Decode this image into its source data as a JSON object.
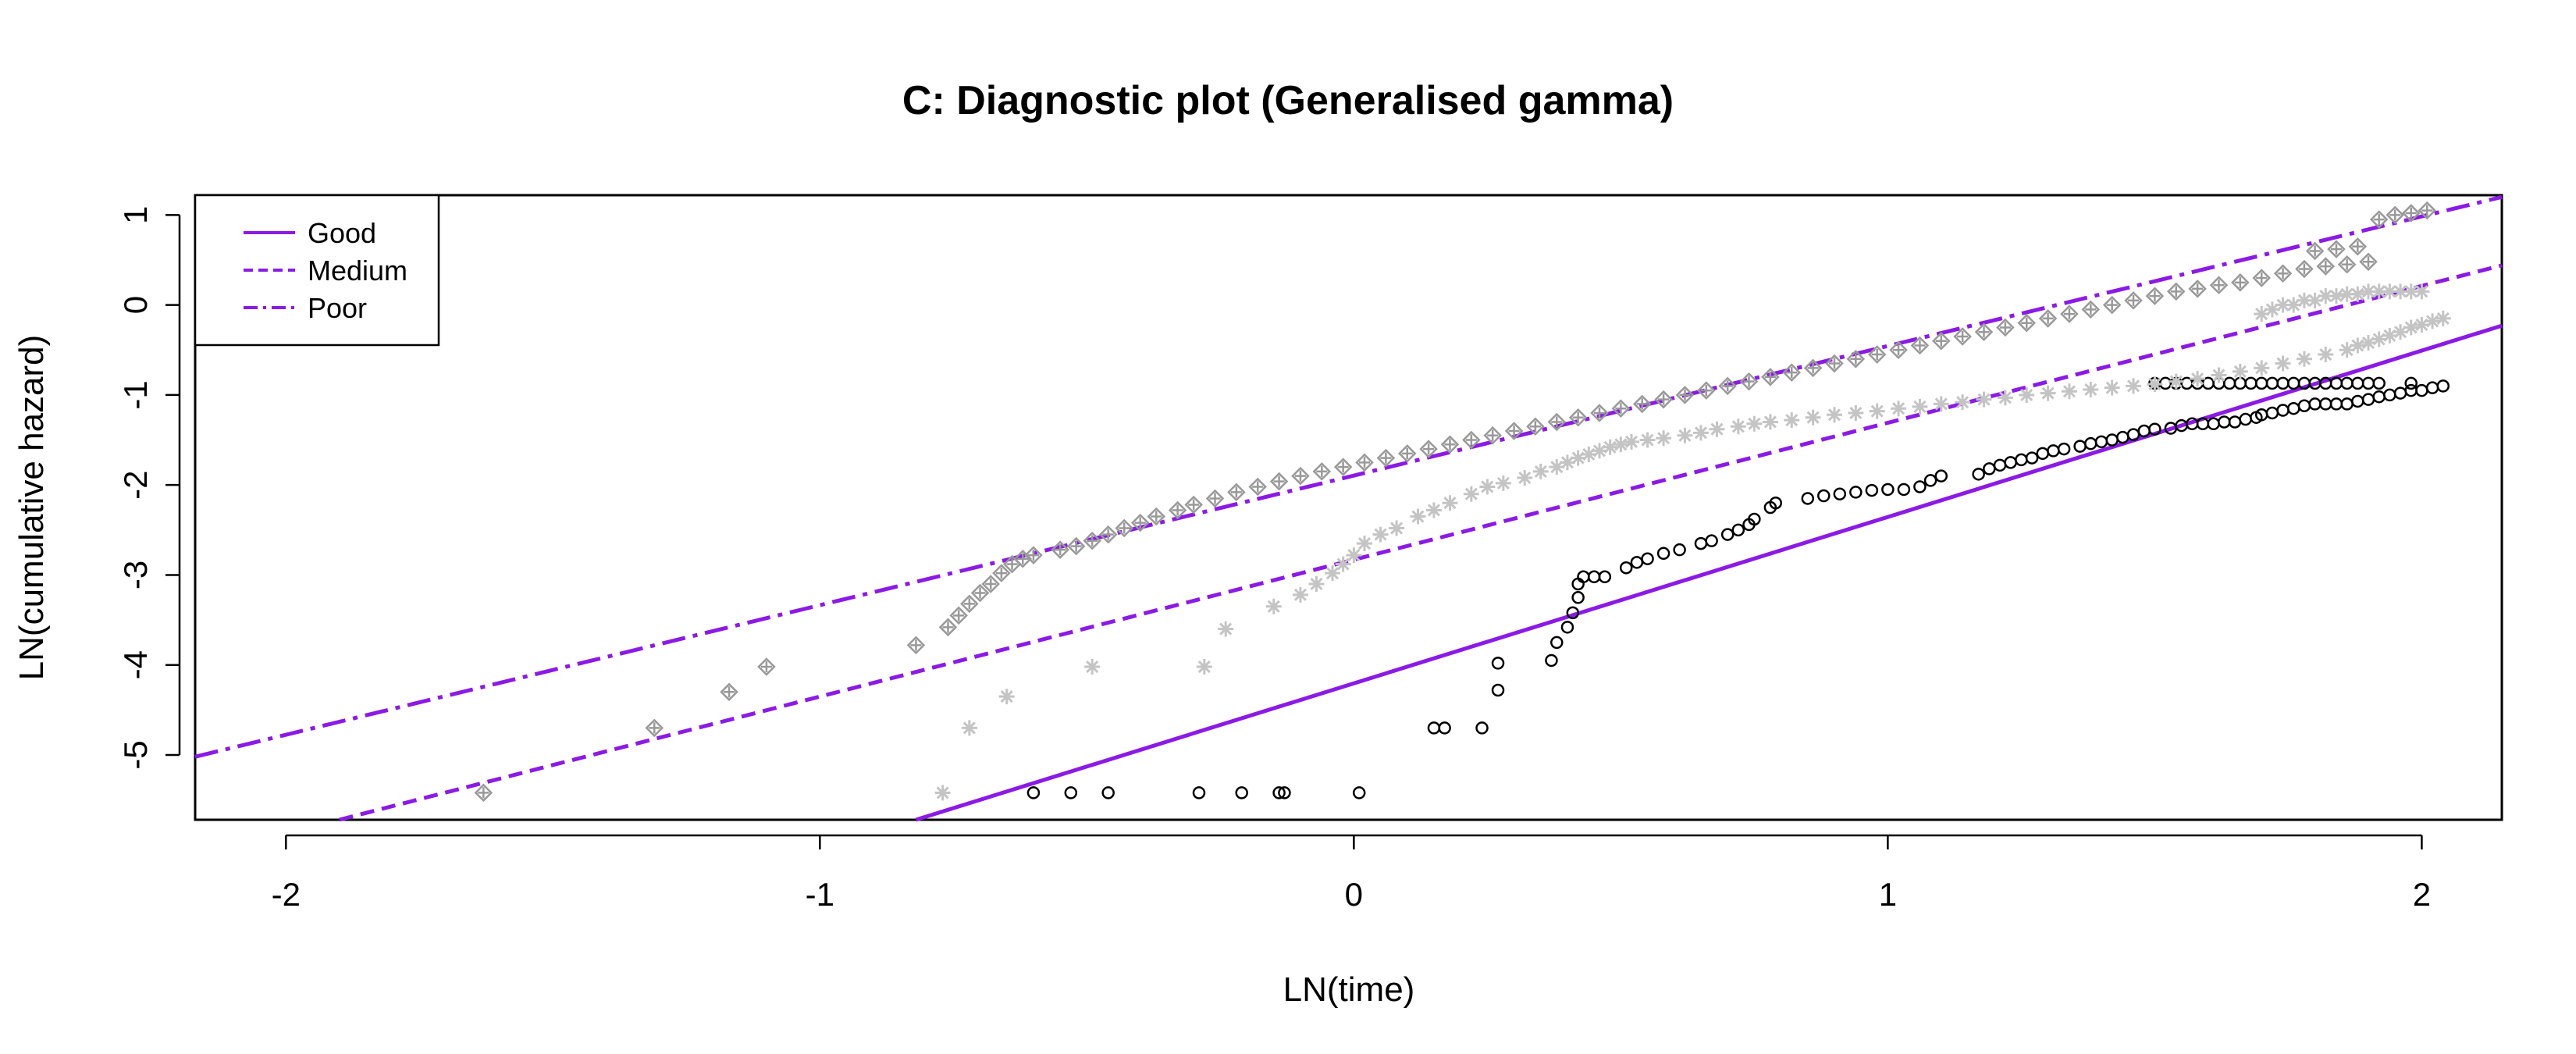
{
  "chart_data": {
    "type": "scatter",
    "title": "C: Diagnostic plot (Generalised gamma)",
    "xlabel": "LN(time)",
    "ylabel": "LN(cumulative hazard)",
    "xlim": [
      -2.17,
      2.15
    ],
    "ylim": [
      -5.72,
      1.22
    ],
    "x_ticks": [
      -2,
      -1,
      0,
      1,
      2
    ],
    "y_ticks": [
      -5,
      -4,
      -3,
      -2,
      -1,
      0,
      1
    ],
    "legend": {
      "position": "top-left",
      "entries": [
        {
          "label": "Good",
          "line": "solid"
        },
        {
          "label": "Medium",
          "line": "dashed"
        },
        {
          "label": "Poor",
          "line": "dotdash"
        }
      ]
    },
    "line_color": "#8b1ae6",
    "lines": [
      {
        "name": "Good",
        "style": "solid",
        "x": [
          -0.82,
          2.15
        ],
        "y": [
          -5.72,
          -0.23
        ]
      },
      {
        "name": "Medium",
        "style": "dashed",
        "x": [
          -1.9,
          2.15
        ],
        "y": [
          -5.72,
          0.44
        ]
      },
      {
        "name": "Poor",
        "style": "dotdash",
        "x": [
          -2.17,
          2.15
        ],
        "y": [
          -5.02,
          1.2
        ]
      }
    ],
    "series": [
      {
        "name": "Good",
        "marker": "circle",
        "color": "#000000",
        "points": [
          [
            -0.6,
            -5.42
          ],
          [
            -0.53,
            -5.42
          ],
          [
            -0.46,
            -5.42
          ],
          [
            -0.29,
            -5.42
          ],
          [
            -0.21,
            -5.42
          ],
          [
            -0.14,
            -5.42
          ],
          [
            -0.13,
            -5.42
          ],
          [
            0.01,
            -5.42
          ],
          [
            0.15,
            -4.7
          ],
          [
            0.17,
            -4.7
          ],
          [
            0.24,
            -4.7
          ],
          [
            0.27,
            -4.28
          ],
          [
            0.27,
            -3.98
          ],
          [
            0.37,
            -3.95
          ],
          [
            0.38,
            -3.75
          ],
          [
            0.4,
            -3.58
          ],
          [
            0.41,
            -3.42
          ],
          [
            0.42,
            -3.25
          ],
          [
            0.42,
            -3.1
          ],
          [
            0.43,
            -3.02
          ],
          [
            0.45,
            -3.02
          ],
          [
            0.47,
            -3.02
          ],
          [
            0.51,
            -2.92
          ],
          [
            0.53,
            -2.86
          ],
          [
            0.55,
            -2.82
          ],
          [
            0.58,
            -2.76
          ],
          [
            0.61,
            -2.72
          ],
          [
            0.65,
            -2.65
          ],
          [
            0.67,
            -2.62
          ],
          [
            0.7,
            -2.55
          ],
          [
            0.72,
            -2.5
          ],
          [
            0.74,
            -2.44
          ],
          [
            0.75,
            -2.38
          ],
          [
            0.78,
            -2.25
          ],
          [
            0.79,
            -2.2
          ],
          [
            0.85,
            -2.15
          ],
          [
            0.88,
            -2.12
          ],
          [
            0.91,
            -2.1
          ],
          [
            0.94,
            -2.08
          ],
          [
            0.97,
            -2.06
          ],
          [
            1.0,
            -2.05
          ],
          [
            1.03,
            -2.05
          ],
          [
            1.06,
            -2.02
          ],
          [
            1.08,
            -1.95
          ],
          [
            1.1,
            -1.9
          ],
          [
            1.17,
            -1.88
          ],
          [
            1.19,
            -1.82
          ],
          [
            1.21,
            -1.78
          ],
          [
            1.23,
            -1.75
          ],
          [
            1.25,
            -1.72
          ],
          [
            1.27,
            -1.7
          ],
          [
            1.29,
            -1.65
          ],
          [
            1.31,
            -1.62
          ],
          [
            1.33,
            -1.6
          ],
          [
            1.36,
            -1.57
          ],
          [
            1.38,
            -1.54
          ],
          [
            1.4,
            -1.52
          ],
          [
            1.42,
            -1.5
          ],
          [
            1.44,
            -1.47
          ],
          [
            1.46,
            -1.44
          ],
          [
            1.48,
            -1.4
          ],
          [
            1.5,
            -1.38
          ],
          [
            1.53,
            -1.37
          ],
          [
            1.55,
            -1.34
          ],
          [
            1.57,
            -1.32
          ],
          [
            1.59,
            -1.32
          ],
          [
            1.61,
            -1.32
          ],
          [
            1.63,
            -1.3
          ],
          [
            1.65,
            -1.3
          ],
          [
            1.67,
            -1.27
          ],
          [
            1.69,
            -1.25
          ],
          [
            1.7,
            -1.22
          ],
          [
            1.72,
            -1.2
          ],
          [
            1.74,
            -1.17
          ],
          [
            1.76,
            -1.15
          ],
          [
            1.78,
            -1.12
          ],
          [
            1.8,
            -1.1
          ],
          [
            1.82,
            -1.1
          ],
          [
            1.84,
            -1.1
          ],
          [
            1.86,
            -1.1
          ],
          [
            1.88,
            -1.07
          ],
          [
            1.9,
            -1.05
          ],
          [
            1.92,
            -1.02
          ],
          [
            1.94,
            -1.0
          ],
          [
            1.96,
            -0.98
          ],
          [
            1.98,
            -0.95
          ],
          [
            2.0,
            -0.95
          ],
          [
            2.02,
            -0.92
          ],
          [
            2.04,
            -0.9
          ],
          [
            1.5,
            -0.87
          ],
          [
            1.52,
            -0.87
          ],
          [
            1.54,
            -0.87
          ],
          [
            1.56,
            -0.87
          ],
          [
            1.58,
            -0.87
          ],
          [
            1.6,
            -0.87
          ],
          [
            1.62,
            -0.87
          ],
          [
            1.64,
            -0.87
          ],
          [
            1.66,
            -0.87
          ],
          [
            1.68,
            -0.87
          ],
          [
            1.7,
            -0.87
          ],
          [
            1.72,
            -0.87
          ],
          [
            1.74,
            -0.87
          ],
          [
            1.76,
            -0.87
          ],
          [
            1.78,
            -0.87
          ],
          [
            1.8,
            -0.87
          ],
          [
            1.82,
            -0.87
          ],
          [
            1.84,
            -0.87
          ],
          [
            1.86,
            -0.87
          ],
          [
            1.88,
            -0.87
          ],
          [
            1.9,
            -0.87
          ],
          [
            1.92,
            -0.87
          ],
          [
            1.98,
            -0.87
          ]
        ]
      },
      {
        "name": "Medium",
        "marker": "asterisk",
        "color": "#c4c4c4",
        "points": [
          [
            -0.77,
            -5.42
          ],
          [
            -0.72,
            -4.7
          ],
          [
            -0.65,
            -4.35
          ],
          [
            -0.49,
            -4.02
          ],
          [
            -0.28,
            -4.02
          ],
          [
            -0.24,
            -3.6
          ],
          [
            -0.15,
            -3.35
          ],
          [
            -0.1,
            -3.22
          ],
          [
            -0.07,
            -3.1
          ],
          [
            -0.04,
            -2.98
          ],
          [
            -0.02,
            -2.88
          ],
          [
            0.0,
            -2.78
          ],
          [
            0.02,
            -2.65
          ],
          [
            0.05,
            -2.55
          ],
          [
            0.08,
            -2.48
          ],
          [
            0.12,
            -2.35
          ],
          [
            0.15,
            -2.28
          ],
          [
            0.18,
            -2.2
          ],
          [
            0.22,
            -2.1
          ],
          [
            0.25,
            -2.02
          ],
          [
            0.28,
            -1.98
          ],
          [
            0.32,
            -1.92
          ],
          [
            0.35,
            -1.85
          ],
          [
            0.38,
            -1.8
          ],
          [
            0.4,
            -1.75
          ],
          [
            0.42,
            -1.7
          ],
          [
            0.44,
            -1.66
          ],
          [
            0.46,
            -1.62
          ],
          [
            0.48,
            -1.58
          ],
          [
            0.5,
            -1.55
          ],
          [
            0.52,
            -1.52
          ],
          [
            0.55,
            -1.5
          ],
          [
            0.58,
            -1.48
          ],
          [
            0.62,
            -1.45
          ],
          [
            0.65,
            -1.42
          ],
          [
            0.68,
            -1.38
          ],
          [
            0.72,
            -1.35
          ],
          [
            0.75,
            -1.32
          ],
          [
            0.78,
            -1.3
          ],
          [
            0.82,
            -1.28
          ],
          [
            0.86,
            -1.25
          ],
          [
            0.9,
            -1.22
          ],
          [
            0.94,
            -1.2
          ],
          [
            0.98,
            -1.18
          ],
          [
            1.02,
            -1.15
          ],
          [
            1.06,
            -1.13
          ],
          [
            1.1,
            -1.1
          ],
          [
            1.14,
            -1.08
          ],
          [
            1.18,
            -1.05
          ],
          [
            1.22,
            -1.03
          ],
          [
            1.26,
            -1.0
          ],
          [
            1.3,
            -0.98
          ],
          [
            1.34,
            -0.96
          ],
          [
            1.38,
            -0.94
          ],
          [
            1.42,
            -0.92
          ],
          [
            1.46,
            -0.9
          ],
          [
            1.5,
            -0.88
          ],
          [
            1.54,
            -0.85
          ],
          [
            1.58,
            -0.82
          ],
          [
            1.62,
            -0.78
          ],
          [
            1.66,
            -0.74
          ],
          [
            1.7,
            -0.7
          ],
          [
            1.74,
            -0.65
          ],
          [
            1.78,
            -0.6
          ],
          [
            1.82,
            -0.55
          ],
          [
            1.86,
            -0.5
          ],
          [
            1.88,
            -0.45
          ],
          [
            1.9,
            -0.42
          ],
          [
            1.92,
            -0.38
          ],
          [
            1.94,
            -0.34
          ],
          [
            1.96,
            -0.3
          ],
          [
            1.98,
            -0.25
          ],
          [
            2.0,
            -0.22
          ],
          [
            2.02,
            -0.18
          ],
          [
            2.04,
            -0.15
          ],
          [
            1.7,
            -0.1
          ],
          [
            1.72,
            -0.05
          ],
          [
            1.74,
            0.0
          ],
          [
            1.76,
            0.0
          ],
          [
            1.78,
            0.05
          ],
          [
            1.8,
            0.05
          ],
          [
            1.82,
            0.1
          ],
          [
            1.84,
            0.1
          ],
          [
            1.86,
            0.12
          ],
          [
            1.88,
            0.12
          ],
          [
            1.9,
            0.15
          ],
          [
            1.92,
            0.15
          ],
          [
            1.94,
            0.15
          ],
          [
            1.96,
            0.15
          ],
          [
            1.98,
            0.15
          ],
          [
            2.0,
            0.15
          ]
        ]
      },
      {
        "name": "Poor",
        "marker": "diamond-plus",
        "color": "#999999",
        "points": [
          [
            -1.63,
            -5.42
          ],
          [
            -1.31,
            -4.7
          ],
          [
            -1.17,
            -4.3
          ],
          [
            -1.1,
            -4.02
          ],
          [
            -0.82,
            -3.78
          ],
          [
            -0.76,
            -3.58
          ],
          [
            -0.74,
            -3.45
          ],
          [
            -0.72,
            -3.32
          ],
          [
            -0.7,
            -3.2
          ],
          [
            -0.68,
            -3.1
          ],
          [
            -0.66,
            -2.98
          ],
          [
            -0.64,
            -2.88
          ],
          [
            -0.62,
            -2.82
          ],
          [
            -0.6,
            -2.78
          ],
          [
            -0.55,
            -2.72
          ],
          [
            -0.52,
            -2.68
          ],
          [
            -0.49,
            -2.62
          ],
          [
            -0.46,
            -2.55
          ],
          [
            -0.43,
            -2.48
          ],
          [
            -0.4,
            -2.42
          ],
          [
            -0.37,
            -2.35
          ],
          [
            -0.33,
            -2.28
          ],
          [
            -0.3,
            -2.22
          ],
          [
            -0.26,
            -2.15
          ],
          [
            -0.22,
            -2.08
          ],
          [
            -0.18,
            -2.02
          ],
          [
            -0.14,
            -1.96
          ],
          [
            -0.1,
            -1.9
          ],
          [
            -0.06,
            -1.85
          ],
          [
            -0.02,
            -1.8
          ],
          [
            0.02,
            -1.75
          ],
          [
            0.06,
            -1.7
          ],
          [
            0.1,
            -1.65
          ],
          [
            0.14,
            -1.6
          ],
          [
            0.18,
            -1.55
          ],
          [
            0.22,
            -1.5
          ],
          [
            0.26,
            -1.45
          ],
          [
            0.3,
            -1.4
          ],
          [
            0.34,
            -1.35
          ],
          [
            0.38,
            -1.3
          ],
          [
            0.42,
            -1.25
          ],
          [
            0.46,
            -1.2
          ],
          [
            0.5,
            -1.15
          ],
          [
            0.54,
            -1.1
          ],
          [
            0.58,
            -1.05
          ],
          [
            0.62,
            -1.0
          ],
          [
            0.66,
            -0.95
          ],
          [
            0.7,
            -0.9
          ],
          [
            0.74,
            -0.85
          ],
          [
            0.78,
            -0.8
          ],
          [
            0.82,
            -0.75
          ],
          [
            0.86,
            -0.7
          ],
          [
            0.9,
            -0.65
          ],
          [
            0.94,
            -0.6
          ],
          [
            0.98,
            -0.55
          ],
          [
            1.02,
            -0.5
          ],
          [
            1.06,
            -0.45
          ],
          [
            1.1,
            -0.4
          ],
          [
            1.14,
            -0.35
          ],
          [
            1.18,
            -0.3
          ],
          [
            1.22,
            -0.25
          ],
          [
            1.26,
            -0.2
          ],
          [
            1.3,
            -0.15
          ],
          [
            1.34,
            -0.1
          ],
          [
            1.38,
            -0.05
          ],
          [
            1.42,
            0.0
          ],
          [
            1.46,
            0.05
          ],
          [
            1.5,
            0.1
          ],
          [
            1.54,
            0.15
          ],
          [
            1.58,
            0.18
          ],
          [
            1.62,
            0.22
          ],
          [
            1.66,
            0.25
          ],
          [
            1.7,
            0.3
          ],
          [
            1.74,
            0.35
          ],
          [
            1.78,
            0.4
          ],
          [
            1.82,
            0.43
          ],
          [
            1.86,
            0.45
          ],
          [
            1.9,
            0.48
          ],
          [
            1.8,
            0.6
          ],
          [
            1.84,
            0.62
          ],
          [
            1.88,
            0.65
          ],
          [
            1.92,
            0.95
          ],
          [
            1.95,
            1.0
          ],
          [
            1.98,
            1.02
          ],
          [
            2.01,
            1.05
          ]
        ]
      }
    ]
  }
}
